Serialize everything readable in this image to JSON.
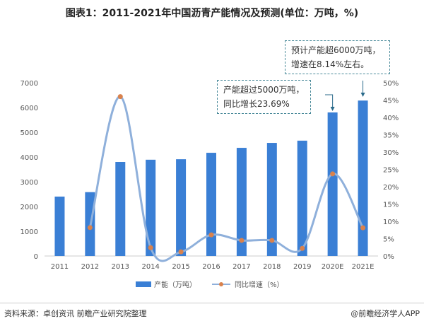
{
  "chart_data": {
    "type": "bar",
    "title": "图表1：2011-2021年中国沥青产能情况及预测(单位：万吨，%)",
    "categories": [
      "2011",
      "2012",
      "2013",
      "2014",
      "2015",
      "2016",
      "2017",
      "2018",
      "2019",
      "2020E",
      "2021E"
    ],
    "series": [
      {
        "name": "产能（万吨）",
        "type": "bar",
        "axis": "left",
        "color": "#3a7fd5",
        "values": [
          2400,
          2580,
          3800,
          3890,
          3910,
          4170,
          4370,
          4570,
          4660,
          5800,
          6280
        ]
      },
      {
        "name": "同比增速（%）",
        "type": "line",
        "axis": "right",
        "color": "#8fb0db",
        "marker_color": "#d9824d",
        "values": [
          null,
          8.2,
          46,
          2.4,
          1.2,
          6.1,
          4.5,
          4.5,
          2.2,
          23.69,
          8.14
        ]
      }
    ],
    "ylim_left": [
      0,
      7000
    ],
    "yticks_left": [
      "0",
      "1000",
      "2000",
      "3000",
      "4000",
      "5000",
      "6000",
      "7000"
    ],
    "ylim_right": [
      0,
      50
    ],
    "yticks_right": [
      "0%",
      "5%",
      "10%",
      "15%",
      "20%",
      "25%",
      "30%",
      "35%",
      "40%",
      "45%",
      "50%"
    ],
    "legend_position": "bottom",
    "annotations": [
      {
        "text1": "产能超过5000万吨，",
        "text2": "同比增长23.69%",
        "target": "2020E"
      },
      {
        "text1": "预计产能超6000万吨，",
        "text2": "增速在8.14%左右。",
        "target": "2021E"
      }
    ]
  },
  "footer": {
    "source": "资料来源：卓创资讯 前瞻产业研究院整理",
    "brand": "@前瞻经济学人APP"
  }
}
